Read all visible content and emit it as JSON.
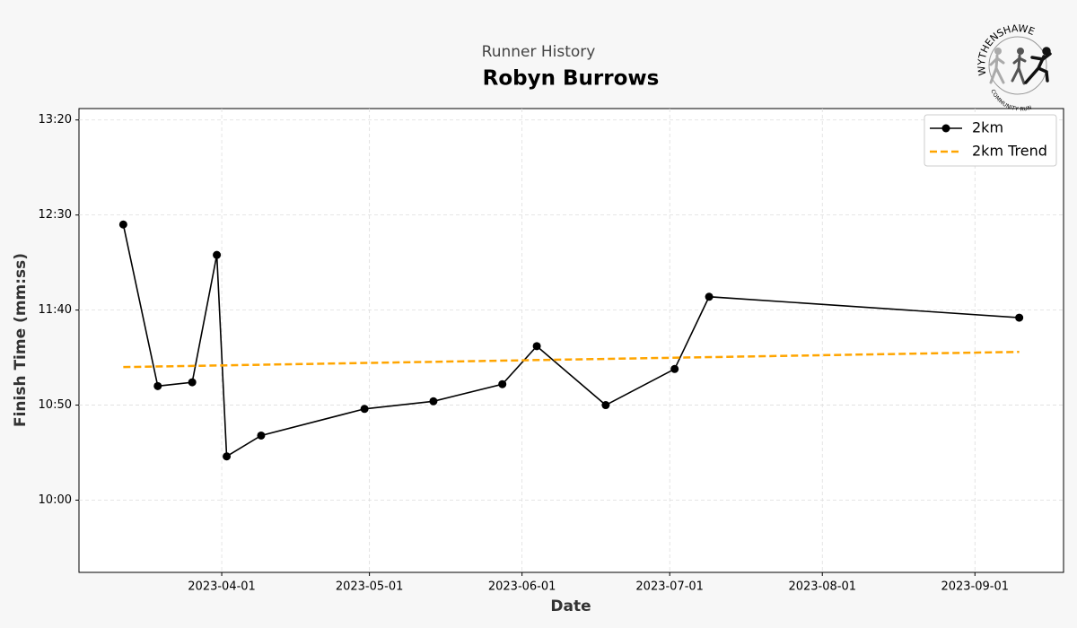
{
  "logo": {
    "top": "WYTHENSHAWE",
    "bottom": "COMMUNITY RUN"
  },
  "chart_data": {
    "type": "line",
    "title": "Robyn Burrows",
    "subtitle": "Runner History",
    "x_label": "Date",
    "y_label": "Finish Time (mm:ss)",
    "x": [
      "2023-03-12",
      "2023-03-19",
      "2023-03-26",
      "2023-03-31",
      "2023-04-02",
      "2023-04-09",
      "2023-04-30",
      "2023-05-14",
      "2023-05-28",
      "2023-06-04",
      "2023-06-18",
      "2023-07-02",
      "2023-07-09",
      "2023-09-10"
    ],
    "series": [
      {
        "name": "2km",
        "color": "#000000",
        "style": "solid",
        "marker": true,
        "values": [
          745,
          660,
          662,
          729,
          623,
          634,
          648,
          652,
          661,
          681,
          650,
          669,
          707,
          696
        ]
      },
      {
        "name": "2km Trend",
        "color": "#ffa500",
        "style": "dashed",
        "marker": false,
        "x": [
          "2023-03-12",
          "2023-09-10"
        ],
        "values": [
          670,
          678
        ]
      }
    ],
    "xlim": [
      "2023-03-03",
      "2023-09-19"
    ],
    "xticks": [
      "2023-04-01",
      "2023-05-01",
      "2023-06-01",
      "2023-07-01",
      "2023-08-01",
      "2023-09-01"
    ],
    "ylim": [
      562,
      806
    ],
    "yticks": [
      {
        "value": 600,
        "label": "10:00"
      },
      {
        "value": 650,
        "label": "10:50"
      },
      {
        "value": 700,
        "label": "11:40"
      },
      {
        "value": 750,
        "label": "12:30"
      },
      {
        "value": 800,
        "label": "13:20"
      }
    ],
    "grid": true,
    "legend": "upper right"
  }
}
